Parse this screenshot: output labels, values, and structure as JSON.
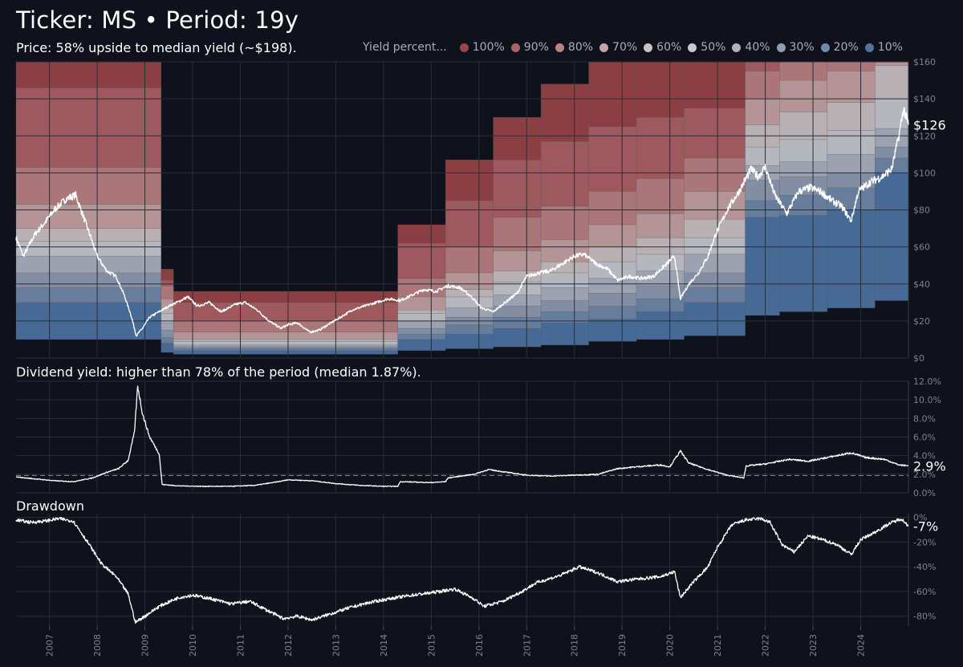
{
  "header": {
    "title": "Ticker: MS • Period: 19y",
    "subtitle": "Price: 58% upside to median yield (~$198)."
  },
  "legend": {
    "title": "Yield percent...",
    "items": [
      {
        "label": "100%",
        "color": "#9a4548"
      },
      {
        "label": "90%",
        "color": "#ad6263"
      },
      {
        "label": "80%",
        "color": "#bb8283"
      },
      {
        "label": "70%",
        "color": "#c6a3a4"
      },
      {
        "label": "60%",
        "color": "#cbc2c3"
      },
      {
        "label": "50%",
        "color": "#c8c9d0"
      },
      {
        "label": "40%",
        "color": "#adb3c1"
      },
      {
        "label": "30%",
        "color": "#8f9cb4"
      },
      {
        "label": "20%",
        "color": "#7089ab"
      },
      {
        "label": "10%",
        "color": "#4e73a4"
      }
    ]
  },
  "panels": {
    "yield_label": "Dividend yield: higher than 78% of the period (median 1.87%).",
    "drawdown_label": "Drawdown"
  },
  "chart_data": [
    {
      "type": "area",
      "name": "price",
      "x_range": [
        2006.3,
        2025.0
      ],
      "ylim": [
        0,
        160
      ],
      "yticks": [
        0,
        20,
        40,
        60,
        80,
        100,
        120,
        140,
        160
      ],
      "ytick_labels": [
        "$0",
        "$20",
        "$40",
        "$60",
        "$80",
        "$100",
        "$120",
        "$140",
        "$160"
      ],
      "last_label": "$126",
      "last_value": 126,
      "band_segments": [
        {
          "x0": 2006.3,
          "x1": 2009.34,
          "bounds": [
            10,
            30,
            38,
            46,
            55,
            63,
            70,
            83,
            103,
            146,
            170
          ]
        },
        {
          "x0": 2009.34,
          "x1": 2009.6,
          "bounds": [
            3,
            8,
            11,
            15,
            19,
            24,
            27,
            32,
            39,
            42,
            48
          ]
        },
        {
          "x0": 2009.6,
          "x1": 2014.3,
          "bounds": [
            2,
            4,
            5,
            6,
            7,
            9,
            10,
            14,
            20,
            30,
            36
          ]
        },
        {
          "x0": 2014.3,
          "x1": 2015.3,
          "bounds": [
            4,
            10,
            13,
            16,
            20,
            24,
            26,
            33,
            43,
            62,
            72
          ]
        },
        {
          "x0": 2015.3,
          "x1": 2016.3,
          "bounds": [
            5,
            13,
            18,
            22,
            27,
            33,
            37,
            46,
            60,
            85,
            107
          ]
        },
        {
          "x0": 2016.3,
          "x1": 2017.3,
          "bounds": [
            6,
            16,
            22,
            28,
            34,
            41,
            47,
            58,
            76,
            107,
            130
          ]
        },
        {
          "x0": 2017.3,
          "x1": 2018.3,
          "bounds": [
            7,
            19,
            25,
            31,
            38,
            46,
            52,
            64,
            82,
            117,
            148
          ]
        },
        {
          "x0": 2018.3,
          "x1": 2019.3,
          "bounds": [
            9,
            21,
            28,
            35,
            43,
            52,
            60,
            72,
            90,
            125,
            165
          ]
        },
        {
          "x0": 2019.3,
          "x1": 2020.3,
          "bounds": [
            10,
            25,
            32,
            39,
            47,
            56,
            65,
            78,
            97,
            130,
            170
          ]
        },
        {
          "x0": 2020.3,
          "x1": 2021.58,
          "bounds": [
            12,
            30,
            38,
            46,
            56,
            65,
            75,
            90,
            108,
            135,
            170
          ]
        },
        {
          "x0": 2021.58,
          "x1": 2022.3,
          "bounds": [
            23,
            76,
            85,
            96,
            104,
            114,
            126,
            140,
            155,
            170,
            175
          ]
        },
        {
          "x0": 2022.3,
          "x1": 2023.3,
          "bounds": [
            25,
            77,
            88,
            98,
            106,
            118,
            133,
            150,
            165,
            175,
            180
          ]
        },
        {
          "x0": 2023.3,
          "x1": 2024.3,
          "bounds": [
            27,
            80,
            92,
            100,
            110,
            123,
            138,
            155,
            170,
            180,
            185
          ]
        },
        {
          "x0": 2024.3,
          "x1": 2025.0,
          "bounds": [
            31,
            100,
            108,
            114,
            124,
            140,
            158,
            170,
            180,
            185,
            190
          ]
        }
      ],
      "price_points": [
        [
          2006.3,
          65
        ],
        [
          2006.45,
          55
        ],
        [
          2006.7,
          67
        ],
        [
          2006.9,
          73
        ],
        [
          2007.1,
          80
        ],
        [
          2007.35,
          86
        ],
        [
          2007.55,
          88
        ],
        [
          2007.8,
          70
        ],
        [
          2008.0,
          55
        ],
        [
          2008.2,
          47
        ],
        [
          2008.4,
          44
        ],
        [
          2008.55,
          35
        ],
        [
          2008.7,
          24
        ],
        [
          2008.82,
          12
        ],
        [
          2008.95,
          16
        ],
        [
          2009.1,
          22
        ],
        [
          2009.3,
          25
        ],
        [
          2009.5,
          28
        ],
        [
          2009.75,
          31
        ],
        [
          2009.9,
          33
        ],
        [
          2010.1,
          28
        ],
        [
          2010.35,
          30
        ],
        [
          2010.6,
          25
        ],
        [
          2010.9,
          29
        ],
        [
          2011.1,
          30
        ],
        [
          2011.35,
          26
        ],
        [
          2011.6,
          20
        ],
        [
          2011.85,
          16
        ],
        [
          2012.0,
          18
        ],
        [
          2012.2,
          19
        ],
        [
          2012.45,
          14
        ],
        [
          2012.65,
          15
        ],
        [
          2012.9,
          19
        ],
        [
          2013.1,
          22
        ],
        [
          2013.35,
          26
        ],
        [
          2013.6,
          28
        ],
        [
          2013.85,
          30
        ],
        [
          2014.1,
          32
        ],
        [
          2014.35,
          31
        ],
        [
          2014.6,
          34
        ],
        [
          2014.85,
          37
        ],
        [
          2015.1,
          36
        ],
        [
          2015.35,
          39
        ],
        [
          2015.6,
          38
        ],
        [
          2015.85,
          33
        ],
        [
          2016.05,
          27
        ],
        [
          2016.3,
          25
        ],
        [
          2016.55,
          30
        ],
        [
          2016.8,
          35
        ],
        [
          2017.0,
          44
        ],
        [
          2017.25,
          46
        ],
        [
          2017.5,
          47
        ],
        [
          2017.75,
          51
        ],
        [
          2018.0,
          55
        ],
        [
          2018.2,
          56
        ],
        [
          2018.45,
          51
        ],
        [
          2018.7,
          48
        ],
        [
          2018.9,
          42
        ],
        [
          2019.15,
          44
        ],
        [
          2019.4,
          43
        ],
        [
          2019.65,
          44
        ],
        [
          2019.9,
          50
        ],
        [
          2020.1,
          55
        ],
        [
          2020.22,
          32
        ],
        [
          2020.4,
          40
        ],
        [
          2020.6,
          46
        ],
        [
          2020.8,
          55
        ],
        [
          2020.95,
          66
        ],
        [
          2021.2,
          80
        ],
        [
          2021.45,
          90
        ],
        [
          2021.7,
          102
        ],
        [
          2021.85,
          98
        ],
        [
          2022.0,
          103
        ],
        [
          2022.2,
          88
        ],
        [
          2022.45,
          78
        ],
        [
          2022.7,
          90
        ],
        [
          2022.95,
          92
        ],
        [
          2023.15,
          90
        ],
        [
          2023.4,
          85
        ],
        [
          2023.6,
          82
        ],
        [
          2023.8,
          74
        ],
        [
          2023.95,
          90
        ],
        [
          2024.2,
          95
        ],
        [
          2024.45,
          98
        ],
        [
          2024.65,
          102
        ],
        [
          2024.8,
          120
        ],
        [
          2024.9,
          135
        ],
        [
          2025.0,
          126
        ]
      ]
    },
    {
      "type": "line",
      "name": "dividend_yield",
      "ylim": [
        0,
        12
      ],
      "yticks": [
        0,
        2,
        4,
        6,
        8,
        10,
        12
      ],
      "ytick_labels": [
        "0.0%",
        "2.0%",
        "4.0%",
        "6.0%",
        "8.0%",
        "10.0%",
        "12.0%"
      ],
      "median": 1.87,
      "last_label": "2.9%",
      "last_value": 2.9,
      "points": [
        [
          2006.3,
          1.7
        ],
        [
          2006.7,
          1.5
        ],
        [
          2007.1,
          1.3
        ],
        [
          2007.5,
          1.2
        ],
        [
          2007.9,
          1.6
        ],
        [
          2008.2,
          2.2
        ],
        [
          2008.45,
          2.6
        ],
        [
          2008.65,
          3.5
        ],
        [
          2008.78,
          6.5
        ],
        [
          2008.85,
          11.5
        ],
        [
          2008.95,
          8.5
        ],
        [
          2009.1,
          6.0
        ],
        [
          2009.3,
          4.2
        ],
        [
          2009.36,
          0.9
        ],
        [
          2009.7,
          0.75
        ],
        [
          2010.2,
          0.7
        ],
        [
          2010.8,
          0.7
        ],
        [
          2011.3,
          0.8
        ],
        [
          2011.8,
          1.2
        ],
        [
          2012.0,
          1.4
        ],
        [
          2012.5,
          1.3
        ],
        [
          2013.0,
          1.0
        ],
        [
          2013.5,
          0.8
        ],
        [
          2014.0,
          0.7
        ],
        [
          2014.3,
          0.7
        ],
        [
          2014.35,
          1.2
        ],
        [
          2015.0,
          1.1
        ],
        [
          2015.3,
          1.2
        ],
        [
          2015.35,
          1.6
        ],
        [
          2015.9,
          2.0
        ],
        [
          2016.2,
          2.5
        ],
        [
          2016.6,
          2.2
        ],
        [
          2017.0,
          1.9
        ],
        [
          2017.5,
          1.8
        ],
        [
          2018.0,
          1.9
        ],
        [
          2018.5,
          2.0
        ],
        [
          2018.9,
          2.6
        ],
        [
          2019.3,
          2.8
        ],
        [
          2019.8,
          3.0
        ],
        [
          2020.0,
          2.8
        ],
        [
          2020.22,
          4.5
        ],
        [
          2020.4,
          3.2
        ],
        [
          2020.8,
          2.5
        ],
        [
          2021.2,
          1.9
        ],
        [
          2021.55,
          1.6
        ],
        [
          2021.6,
          2.9
        ],
        [
          2022.0,
          3.1
        ],
        [
          2022.5,
          3.6
        ],
        [
          2022.9,
          3.4
        ],
        [
          2023.3,
          3.8
        ],
        [
          2023.8,
          4.3
        ],
        [
          2024.1,
          3.8
        ],
        [
          2024.5,
          3.6
        ],
        [
          2024.8,
          3.0
        ],
        [
          2025.0,
          2.9
        ]
      ]
    },
    {
      "type": "line",
      "name": "drawdown",
      "ylim": [
        -88,
        3
      ],
      "yticks": [
        0,
        -20,
        -40,
        -60,
        -80
      ],
      "ytick_labels": [
        "0%",
        "-20%",
        "-40%",
        "-60%",
        "-80%"
      ],
      "last_label": "-7%",
      "last_value": -7,
      "points": [
        [
          2006.3,
          -2
        ],
        [
          2006.6,
          -4
        ],
        [
          2006.9,
          -3
        ],
        [
          2007.2,
          -1
        ],
        [
          2007.5,
          -3
        ],
        [
          2007.8,
          -20
        ],
        [
          2008.1,
          -38
        ],
        [
          2008.4,
          -48
        ],
        [
          2008.65,
          -62
        ],
        [
          2008.8,
          -85
        ],
        [
          2009.0,
          -80
        ],
        [
          2009.3,
          -72
        ],
        [
          2009.7,
          -65
        ],
        [
          2010.0,
          -63
        ],
        [
          2010.4,
          -66
        ],
        [
          2010.8,
          -70
        ],
        [
          2011.2,
          -68
        ],
        [
          2011.6,
          -76
        ],
        [
          2011.9,
          -82
        ],
        [
          2012.2,
          -80
        ],
        [
          2012.5,
          -83
        ],
        [
          2012.9,
          -78
        ],
        [
          2013.3,
          -73
        ],
        [
          2013.7,
          -69
        ],
        [
          2014.1,
          -66
        ],
        [
          2014.6,
          -63
        ],
        [
          2015.0,
          -61
        ],
        [
          2015.5,
          -58
        ],
        [
          2015.9,
          -66
        ],
        [
          2016.1,
          -72
        ],
        [
          2016.5,
          -68
        ],
        [
          2016.9,
          -60
        ],
        [
          2017.2,
          -53
        ],
        [
          2017.7,
          -47
        ],
        [
          2018.1,
          -40
        ],
        [
          2018.5,
          -45
        ],
        [
          2018.9,
          -52
        ],
        [
          2019.3,
          -50
        ],
        [
          2019.8,
          -48
        ],
        [
          2020.1,
          -44
        ],
        [
          2020.22,
          -65
        ],
        [
          2020.5,
          -52
        ],
        [
          2020.8,
          -40
        ],
        [
          2021.0,
          -24
        ],
        [
          2021.3,
          -6
        ],
        [
          2021.6,
          -2
        ],
        [
          2021.9,
          -1
        ],
        [
          2022.1,
          -4
        ],
        [
          2022.35,
          -22
        ],
        [
          2022.6,
          -28
        ],
        [
          2022.9,
          -15
        ],
        [
          2023.2,
          -18
        ],
        [
          2023.5,
          -22
        ],
        [
          2023.8,
          -30
        ],
        [
          2024.0,
          -18
        ],
        [
          2024.3,
          -12
        ],
        [
          2024.6,
          -5
        ],
        [
          2024.85,
          -1
        ],
        [
          2025.0,
          -7
        ]
      ]
    }
  ],
  "x_axis": {
    "labels": [
      "2007",
      "2008",
      "2009",
      "2010",
      "2011",
      "2012",
      "2013",
      "2014",
      "2015",
      "2016",
      "2017",
      "2018",
      "2019",
      "2020",
      "2021",
      "2022",
      "2023",
      "2024"
    ]
  },
  "colors": {
    "background": "#0f121a",
    "grid": "#2a2e38",
    "line": "#ffffff",
    "axis_text": "#7e828c",
    "median_line": "#8a8e96"
  }
}
